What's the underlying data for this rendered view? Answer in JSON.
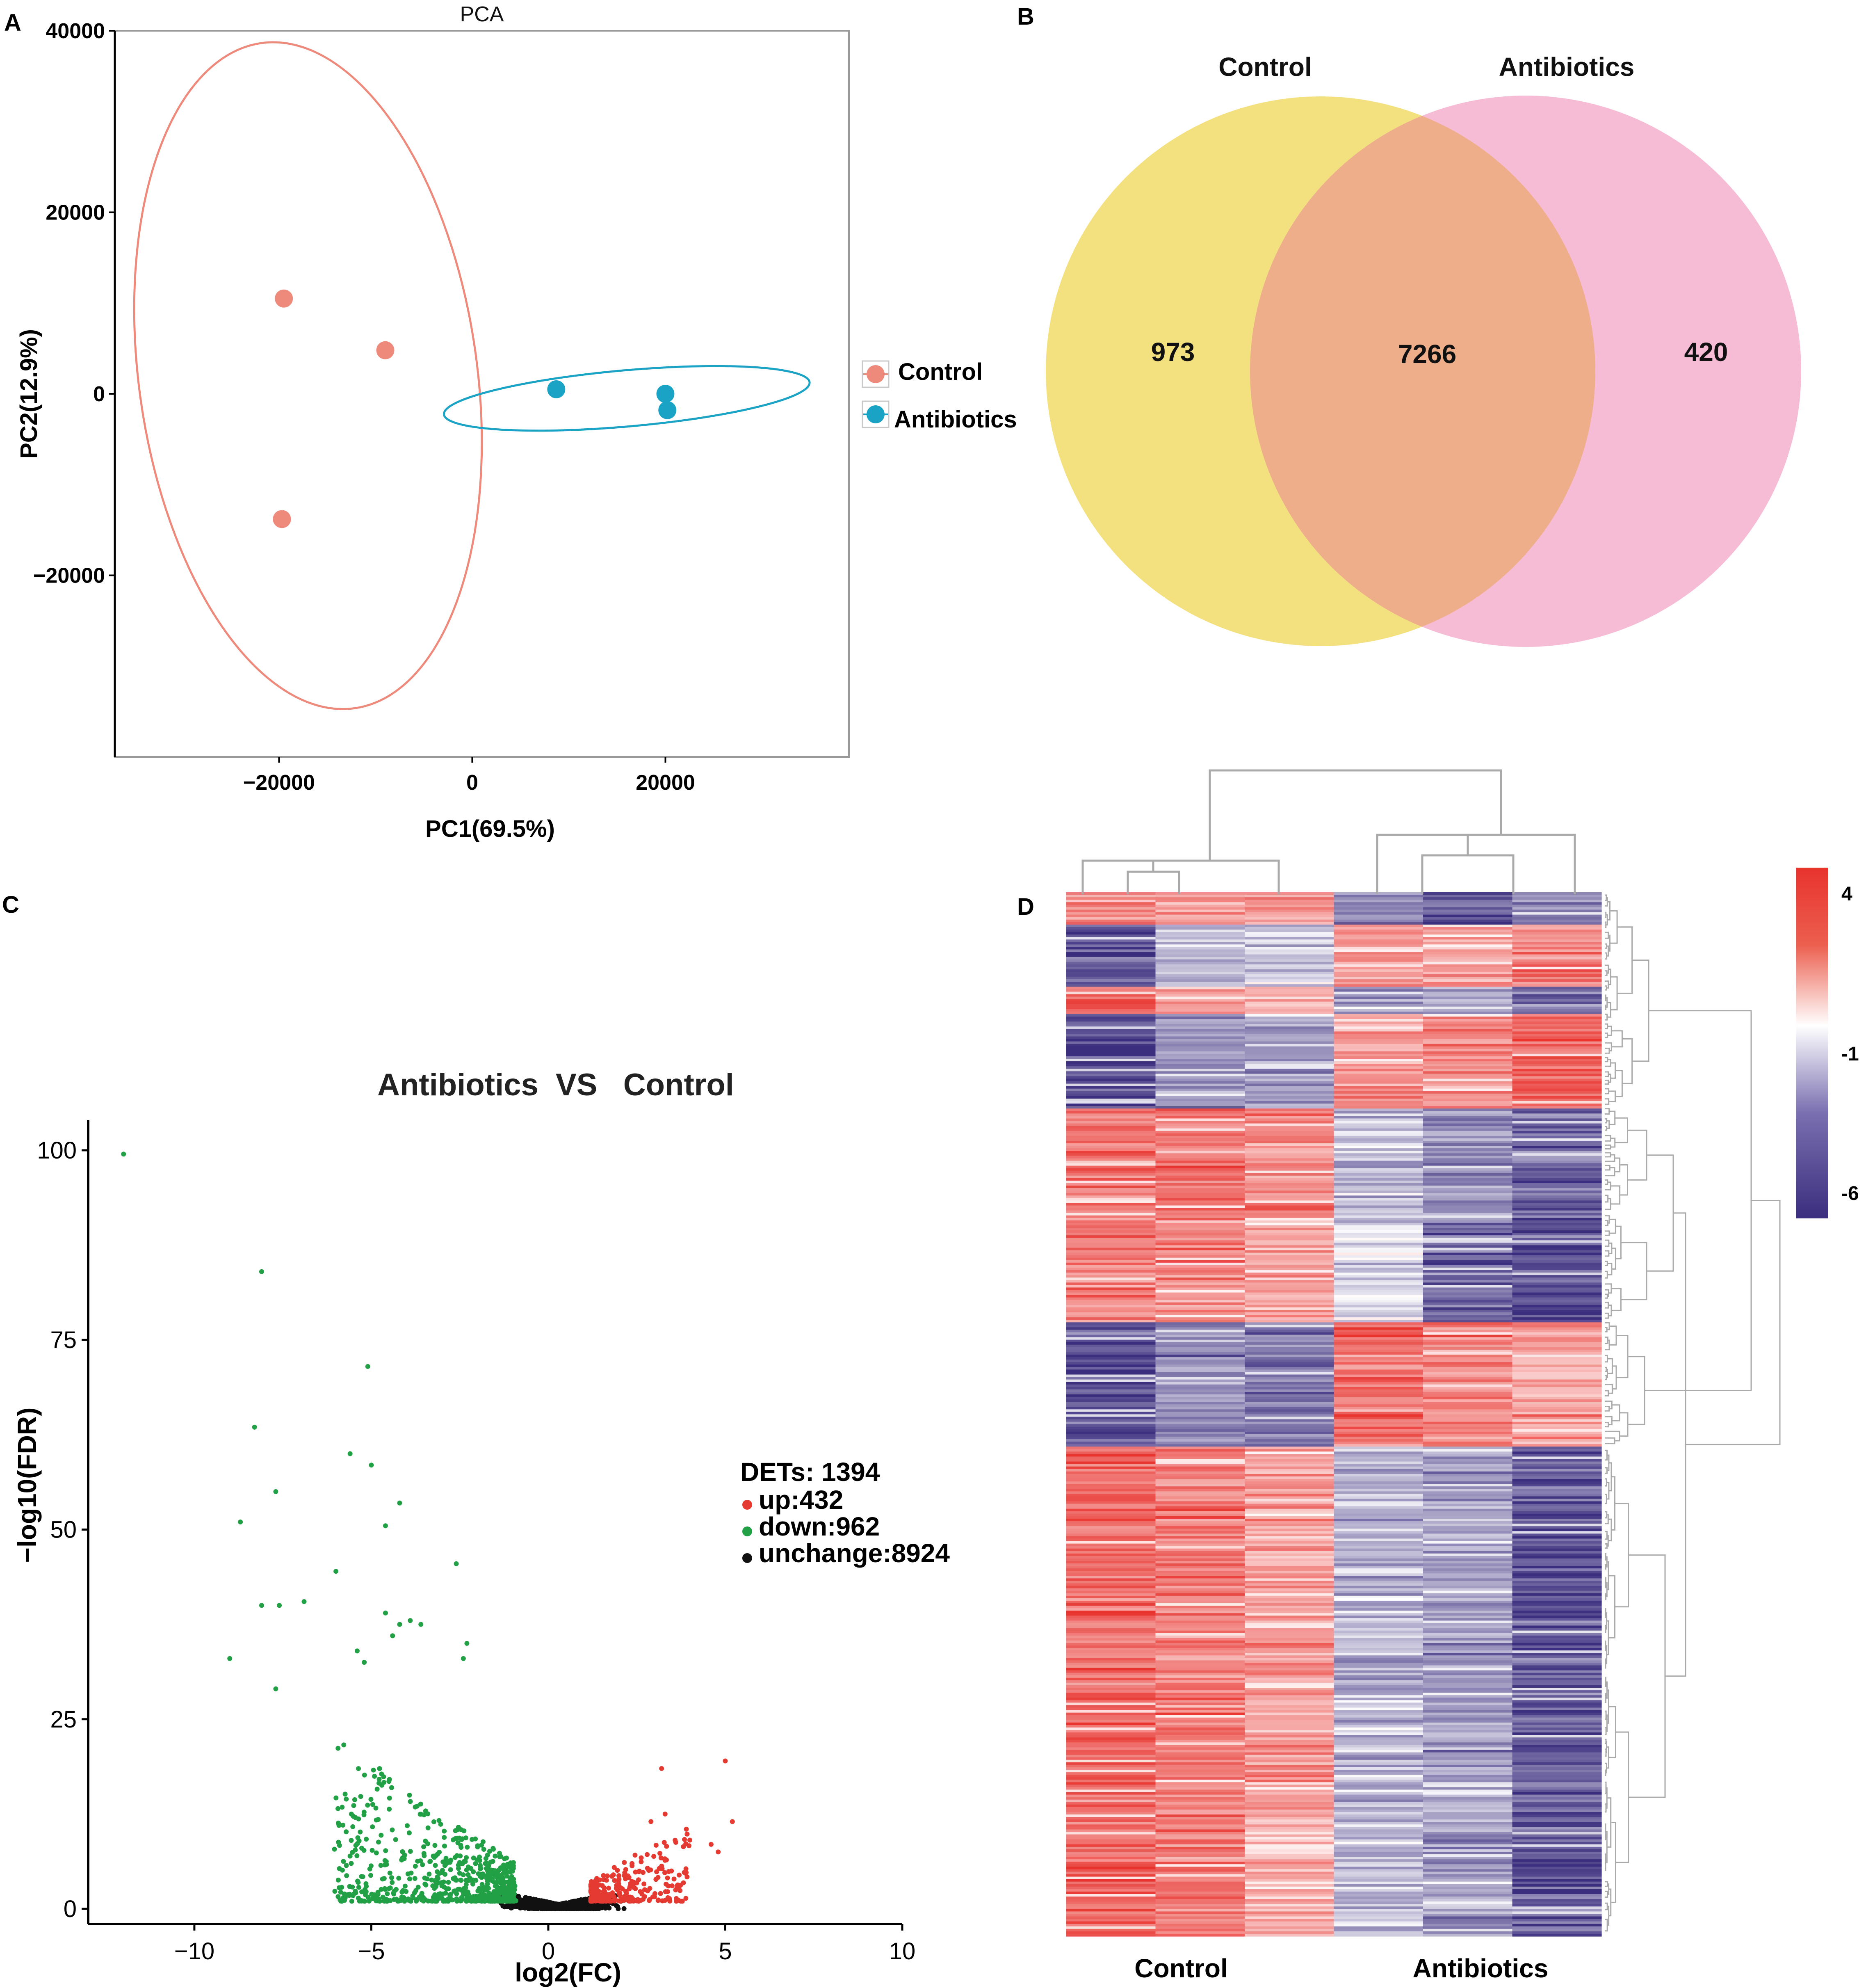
{
  "panels": {
    "a": "A",
    "b": "B",
    "c": "C",
    "d": "D"
  },
  "colors": {
    "control": "#ee8a7c",
    "antibiotics": "#1ba3c6",
    "venn_control": "#f3e17f",
    "venn_antibiotics": "#f6bcd6",
    "venn_overlap": "#eeae8a",
    "up": "#e53a32",
    "down": "#22a046",
    "unchange": "#111111",
    "heat_high": "#e8332e",
    "heat_mid": "#ffffff",
    "heat_low": "#3b2e7e",
    "dendro": "#aaaaaa"
  },
  "chart_data": [
    {
      "type": "scatter",
      "title": "PCA",
      "xlabel": "PC1(69.5%)",
      "ylabel": "PC2(12.9%)",
      "xlim": [
        -37000,
        39000
      ],
      "ylim": [
        -40000,
        40000
      ],
      "x_ticks": [
        -20000,
        0,
        20000
      ],
      "x_tick_labels": [
        "−20000",
        "0",
        "20000"
      ],
      "y_ticks": [
        40000,
        20000,
        0,
        -20000
      ],
      "y_tick_labels": [
        "40000",
        "20000",
        "0",
        "−20000"
      ],
      "legend": [
        "Control",
        "Antibiotics"
      ],
      "series": [
        {
          "name": "Control",
          "points": [
            [
              -19500,
              10500
            ],
            [
              -9000,
              4800
            ],
            [
              -19700,
              -13800
            ]
          ]
        },
        {
          "name": "Antibiotics",
          "points": [
            [
              8700,
              500
            ],
            [
              20000,
              0
            ],
            [
              20200,
              -1800
            ]
          ]
        }
      ],
      "ellipses": [
        {
          "group": "Control",
          "cx": -17000,
          "cy": 2000,
          "rx": 17500,
          "ry": 37000,
          "angle_deg": -8
        },
        {
          "group": "Antibiotics",
          "cx": 16000,
          "cy": -500,
          "rx": 19000,
          "ry": 3100,
          "angle_deg": -5
        }
      ]
    },
    {
      "type": "venn",
      "sets": [
        "Control",
        "Antibiotics"
      ],
      "only_control": "973",
      "overlap": "7266",
      "only_antibiotics": "420"
    },
    {
      "type": "scatter",
      "title": "Antibiotics  VS   Control",
      "xlabel": "log2(FC)",
      "ylabel": "−log10(FDR)",
      "xlim": [
        -13,
        10
      ],
      "ylim": [
        -2,
        104
      ],
      "x_ticks": [
        -10,
        -5,
        0,
        5,
        10
      ],
      "x_tick_labels": [
        "−10",
        "−5",
        "0",
        "5",
        "10"
      ],
      "y_ticks": [
        0,
        25,
        50,
        75,
        100
      ],
      "y_tick_labels": [
        "0",
        "25",
        "50",
        "75",
        "100"
      ],
      "summary": {
        "title": "DETs: 1394",
        "up": "up:432",
        "down": "down:962",
        "unchange": "unchange:8924"
      },
      "down_points": [
        [
          -12,
          99.5
        ],
        [
          -8.1,
          84
        ],
        [
          -8.3,
          63.5
        ],
        [
          -7.7,
          55
        ],
        [
          -8.7,
          51
        ],
        [
          -8.1,
          40
        ],
        [
          -7.6,
          40
        ],
        [
          -6.9,
          40.5
        ],
        [
          -9,
          33
        ],
        [
          -7.7,
          29
        ],
        [
          -5.1,
          71.5
        ],
        [
          -5,
          58.5
        ],
        [
          -5.6,
          60
        ],
        [
          -4.2,
          53.5
        ],
        [
          -4.6,
          50.5
        ],
        [
          -6,
          44.5
        ],
        [
          -2.6,
          45.5
        ],
        [
          -4.6,
          39
        ],
        [
          -4.2,
          37.5
        ],
        [
          -3.9,
          38
        ],
        [
          -3.6,
          37.5
        ],
        [
          -4.4,
          36
        ],
        [
          -2.3,
          35
        ],
        [
          -5.4,
          34
        ],
        [
          -2.4,
          33
        ],
        [
          -5.2,
          32.5
        ]
      ],
      "up_points": [
        [
          5,
          19.5
        ],
        [
          3.2,
          18.5
        ],
        [
          5.2,
          11.5
        ],
        [
          4.6,
          8.5
        ],
        [
          4.8,
          7.5
        ],
        [
          3.9,
          10.5
        ],
        [
          3.3,
          12.5
        ],
        [
          2.9,
          11.5
        ]
      ],
      "dense_note": "remaining points generated as a dense V-shaped cloud"
    },
    {
      "type": "heatmap",
      "columns": [
        "Control",
        "Antibiotics"
      ],
      "column_group_labels": [
        "Control",
        "Antibiotics"
      ],
      "num_columns": 6,
      "num_rows": 420,
      "scale": {
        "max": "4",
        "mid": "-1",
        "min": "-6"
      },
      "row_blocks": [
        {
          "from": 0,
          "to": 0.03,
          "pattern": [
            0.55,
            0.5,
            0.5,
            -0.55,
            -0.75,
            -0.6
          ]
        },
        {
          "from": 0.03,
          "to": 0.09,
          "pattern": [
            -0.8,
            -0.35,
            -0.25,
            0.45,
            0.45,
            0.6
          ]
        },
        {
          "from": 0.09,
          "to": 0.115,
          "pattern": [
            0.8,
            0.55,
            0.5,
            -0.45,
            -0.4,
            -0.7
          ]
        },
        {
          "from": 0.115,
          "to": 0.205,
          "pattern": [
            -0.85,
            -0.5,
            -0.45,
            0.5,
            0.55,
            0.75
          ]
        },
        {
          "from": 0.205,
          "to": 0.31,
          "pattern": [
            0.65,
            0.65,
            0.6,
            -0.3,
            -0.55,
            -0.75
          ]
        },
        {
          "from": 0.31,
          "to": 0.41,
          "pattern": [
            0.6,
            0.55,
            0.45,
            -0.15,
            -0.7,
            -0.85
          ]
        },
        {
          "from": 0.41,
          "to": 0.53,
          "pattern": [
            -0.8,
            -0.55,
            -0.65,
            0.7,
            0.6,
            0.45
          ]
        },
        {
          "from": 0.53,
          "to": 1.0,
          "pattern": [
            0.75,
            0.65,
            0.45,
            -0.35,
            -0.45,
            -0.8
          ]
        }
      ]
    }
  ]
}
